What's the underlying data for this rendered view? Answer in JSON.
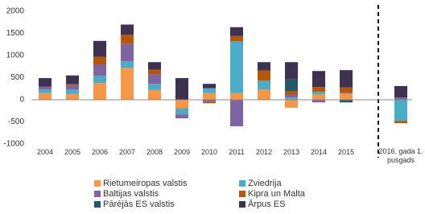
{
  "chart_data": {
    "type": "stacked-bar",
    "categories": [
      "2004",
      "2005",
      "2006",
      "2007",
      "2008",
      "2009",
      "2010",
      "2011",
      "2012",
      "2013",
      "2014",
      "2015",
      null,
      "2016. gada 1. pusgads"
    ],
    "series": [
      {
        "name": "Rietumeiropas valstis",
        "color": "#f79646",
        "values": [
          150,
          130,
          380,
          720,
          220,
          -200,
          150,
          150,
          230,
          -180,
          120,
          140,
          null,
          0
        ]
      },
      {
        "name": "Zviedrija",
        "color": "#4bacc6",
        "values": [
          80,
          100,
          160,
          150,
          140,
          -130,
          110,
          1170,
          200,
          50,
          60,
          0,
          null,
          -480
        ]
      },
      {
        "name": "Baltijas valstis",
        "color": "#8064a2",
        "values": [
          70,
          100,
          260,
          400,
          220,
          -90,
          -50,
          -600,
          0,
          60,
          -60,
          20,
          null,
          50
        ]
      },
      {
        "name": "Kipra un Malta",
        "color": "#b65708",
        "values": [
          0,
          20,
          170,
          200,
          100,
          0,
          -30,
          120,
          230,
          90,
          110,
          120,
          null,
          -50
        ]
      },
      {
        "name": "Pārējās ES valstis",
        "color": "#215968",
        "values": [
          0,
          0,
          0,
          0,
          0,
          0,
          0,
          0,
          0,
          260,
          0,
          -60,
          null,
          0
        ]
      },
      {
        "name": "Ārpus ES",
        "color": "#3f3151",
        "values": [
          190,
          200,
          360,
          230,
          170,
          490,
          100,
          200,
          190,
          390,
          360,
          390,
          null,
          260
        ]
      }
    ],
    "ylim": [
      -1000,
      2000
    ],
    "yticks": [
      -1000,
      -500,
      0,
      500,
      1000,
      1500,
      2000
    ],
    "grid": false
  }
}
